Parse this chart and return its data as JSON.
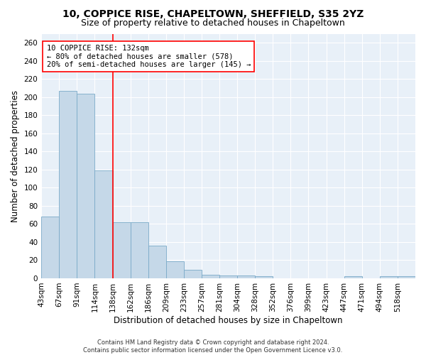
{
  "title": "10, COPPICE RISE, CHAPELTOWN, SHEFFIELD, S35 2YZ",
  "subtitle": "Size of property relative to detached houses in Chapeltown",
  "xlabel": "Distribution of detached houses by size in Chapeltown",
  "ylabel": "Number of detached properties",
  "footer_line1": "Contains HM Land Registry data © Crown copyright and database right 2024.",
  "footer_line2": "Contains public sector information licensed under the Open Government Licence v3.0.",
  "bar_labels": [
    "43sqm",
    "67sqm",
    "91sqm",
    "114sqm",
    "138sqm",
    "162sqm",
    "186sqm",
    "209sqm",
    "233sqm",
    "257sqm",
    "281sqm",
    "304sqm",
    "328sqm",
    "352sqm",
    "376sqm",
    "399sqm",
    "423sqm",
    "447sqm",
    "471sqm",
    "494sqm",
    "518sqm"
  ],
  "bar_heights": [
    68,
    207,
    204,
    119,
    62,
    62,
    36,
    19,
    9,
    4,
    3,
    3,
    2,
    0,
    0,
    0,
    0,
    2,
    0,
    2,
    2
  ],
  "bar_color": "#c5d8e8",
  "bar_edge_color": "#7aaac8",
  "red_line_x": 4.0,
  "annotation_text": "10 COPPICE RISE: 132sqm\n← 80% of detached houses are smaller (578)\n20% of semi-detached houses are larger (145) →",
  "ylim": [
    0,
    270
  ],
  "yticks": [
    0,
    20,
    40,
    60,
    80,
    100,
    120,
    140,
    160,
    180,
    200,
    220,
    240,
    260
  ],
  "plot_bg_color": "#e8f0f8",
  "grid_color": "#ffffff",
  "title_fontsize": 10,
  "subtitle_fontsize": 9,
  "xlabel_fontsize": 8.5,
  "ylabel_fontsize": 8.5,
  "tick_fontsize": 7.5,
  "annotation_fontsize": 7.5,
  "footer_fontsize": 6
}
